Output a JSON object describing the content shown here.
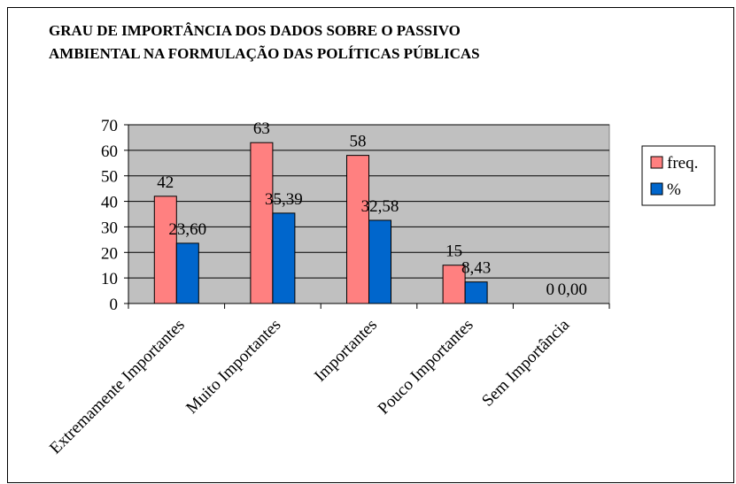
{
  "chart_data": {
    "type": "bar",
    "title_lines": [
      "GRAU DE IMPORTÂNCIA DOS DADOS SOBRE O PASSIVO",
      "AMBIENTAL NA FORMULAÇÃO DAS POLÍTICAS PÚBLICAS"
    ],
    "categories": [
      "Extremamente Importantes",
      "Muito Importantes",
      "Importantes",
      "Pouco Importantes",
      "Sem Importância"
    ],
    "series": [
      {
        "name": "freq.",
        "values": [
          42,
          63,
          58,
          15,
          0
        ],
        "labels": [
          "42",
          "63",
          "58",
          "15",
          "0"
        ],
        "color": "#ff8080"
      },
      {
        "name": "%",
        "values": [
          23.6,
          35.39,
          32.58,
          8.43,
          0.0
        ],
        "labels": [
          "23,60",
          "35,39",
          "32,58",
          "8,43",
          "0,00"
        ],
        "color": "#0066cc"
      }
    ],
    "ylim": [
      0,
      70
    ],
    "yticks": [
      0,
      10,
      20,
      30,
      40,
      50,
      60,
      70
    ],
    "plot_background": "#c0c0c0",
    "grid": true,
    "legend_position": "right"
  }
}
